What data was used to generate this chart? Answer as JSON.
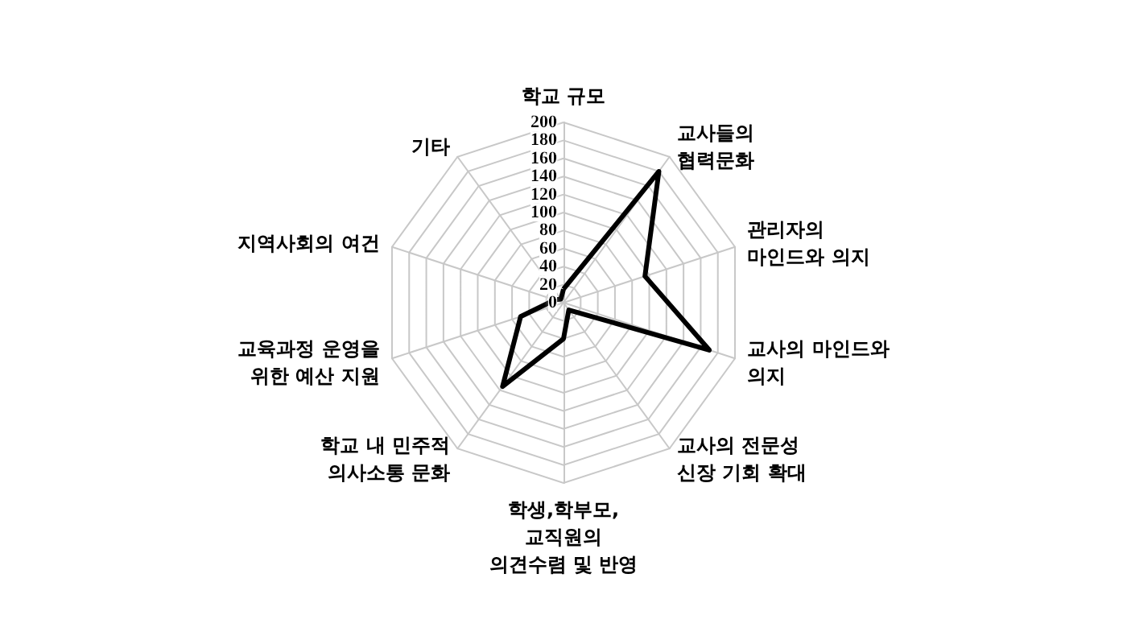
{
  "chart_data": {
    "type": "radar",
    "categories": [
      "학교 규모",
      "교사들의\n협력문화",
      "관리자의\n마인드와 의지",
      "교사의 마인드와\n의지",
      "교사의 전문성\n신장 기회 확대",
      "학생,학부모,\n교직원의\n의견수렴 및 반영",
      "학교 내 민주적\n의사소통 문화",
      "교육과정 운영을\n위한 예산 지원",
      "지역사회의 여건",
      "기타"
    ],
    "series": [
      {
        "color": "#000000",
        "values": [
          15,
          180,
          95,
          170,
          10,
          40,
          115,
          50,
          10,
          5
        ]
      }
    ],
    "ylim": [
      0,
      200
    ],
    "yticks": [
      0,
      20,
      40,
      60,
      80,
      100,
      120,
      140,
      160,
      180,
      200
    ],
    "marker": "none",
    "grid": true
  }
}
